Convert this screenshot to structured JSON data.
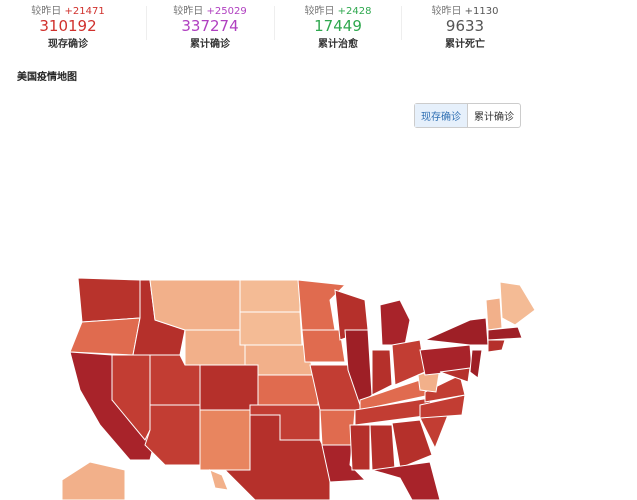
{
  "stats": [
    {
      "prefix": "较昨日",
      "delta": "+21471",
      "value": "310192",
      "label": "现存确诊"
    },
    {
      "prefix": "较昨日",
      "delta": "+25029",
      "value": "337274",
      "label": "累计确诊"
    },
    {
      "prefix": "较昨日",
      "delta": "+2428",
      "value": "17449",
      "label": "累计治愈"
    },
    {
      "prefix": "较昨日",
      "delta": "+1130",
      "value": "9633",
      "label": "累计死亡"
    }
  ],
  "map_title": "美国疫情地图",
  "toggle": {
    "options": [
      "现存确诊",
      "累计确诊"
    ]
  }
}
